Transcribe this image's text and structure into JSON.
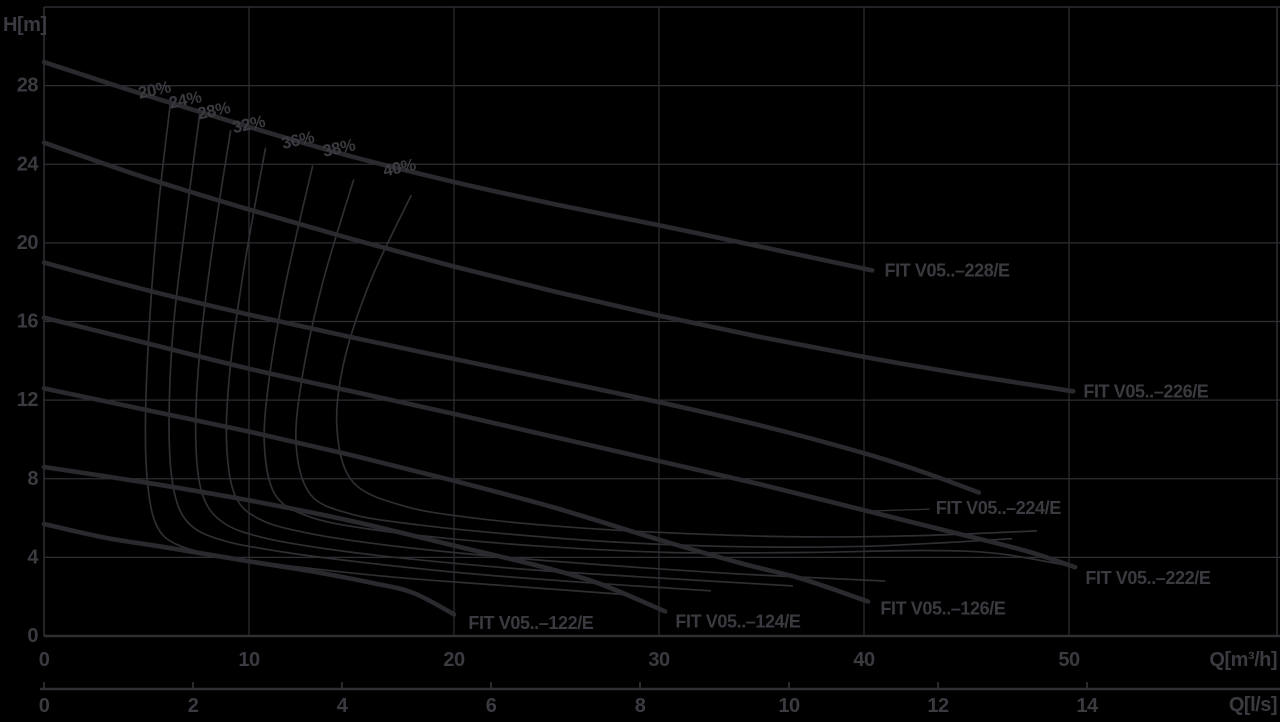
{
  "page": {
    "background": "#000000",
    "ink_grid": "#2e2e33",
    "ink_curve": "#29292e",
    "ink_thin": "#2e2e33",
    "ink_text": "#3a3a40"
  },
  "chart_data": {
    "type": "line",
    "y_axis": {
      "label": "H[m]",
      "ticks": [
        0,
        4,
        8,
        12,
        16,
        20,
        24,
        28
      ],
      "range": [
        0,
        32
      ],
      "grid": true
    },
    "x_axis_primary": {
      "label": "Q[m³/h]",
      "ticks": [
        0,
        10,
        20,
        30,
        40,
        50
      ],
      "range": [
        0,
        60.2
      ],
      "grid": true
    },
    "x_axis_secondary": {
      "label": "Q[l/s]",
      "ticks": [
        0,
        2,
        4,
        6,
        8,
        10,
        12,
        14
      ],
      "range": [
        0,
        16.6
      ]
    },
    "pump_curves": [
      {
        "name": "FIT V05..–228/E",
        "label_at": [
          41.0,
          18.6
        ],
        "points": [
          [
            0,
            29.2
          ],
          [
            5,
            27.5
          ],
          [
            10,
            25.9
          ],
          [
            15,
            24.4
          ],
          [
            20,
            23.1
          ],
          [
            25,
            21.95
          ],
          [
            30,
            20.9
          ],
          [
            35,
            19.8
          ],
          [
            40.4,
            18.6
          ]
        ]
      },
      {
        "name": "FIT V05..–226/E",
        "label_at": [
          50.7,
          12.45
        ],
        "points": [
          [
            0,
            25.1
          ],
          [
            5,
            23.3
          ],
          [
            10,
            21.7
          ],
          [
            15,
            20.2
          ],
          [
            20,
            18.8
          ],
          [
            25,
            17.5
          ],
          [
            30,
            16.3
          ],
          [
            35,
            15.2
          ],
          [
            40,
            14.2
          ],
          [
            45,
            13.3
          ],
          [
            50.2,
            12.45
          ]
        ]
      },
      {
        "name": "FIT V05..–224/E",
        "label_at": [
          43.5,
          6.5
        ],
        "leader": [
          [
            40.0,
            6.35
          ],
          [
            43.2,
            6.45
          ]
        ],
        "points": [
          [
            0,
            19.0
          ],
          [
            5,
            17.6
          ],
          [
            10,
            16.35
          ],
          [
            15,
            15.2
          ],
          [
            20,
            14.1
          ],
          [
            25,
            13.0
          ],
          [
            30,
            11.9
          ],
          [
            35,
            10.7
          ],
          [
            40,
            9.3
          ],
          [
            43,
            8.3
          ],
          [
            45.6,
            7.3
          ]
        ]
      },
      {
        "name": "FIT V05..–222/E",
        "label_at": [
          50.8,
          2.95
        ],
        "points": [
          [
            0,
            16.2
          ],
          [
            5,
            14.9
          ],
          [
            10,
            13.6
          ],
          [
            15,
            12.45
          ],
          [
            20,
            11.3
          ],
          [
            25,
            10.1
          ],
          [
            30,
            8.9
          ],
          [
            35,
            7.7
          ],
          [
            40,
            6.4
          ],
          [
            45,
            5.1
          ],
          [
            48,
            4.3
          ],
          [
            50.3,
            3.5
          ]
        ]
      },
      {
        "name": "FIT V05..–126/E",
        "label_at": [
          40.8,
          1.4
        ],
        "points": [
          [
            0,
            12.6
          ],
          [
            5,
            11.5
          ],
          [
            10,
            10.4
          ],
          [
            15,
            9.2
          ],
          [
            20,
            7.9
          ],
          [
            25,
            6.5
          ],
          [
            30,
            4.9
          ],
          [
            34,
            3.7
          ],
          [
            37,
            2.9
          ],
          [
            40.2,
            1.75
          ]
        ]
      },
      {
        "name": "FIT V05..–124/E",
        "label_at": [
          30.8,
          0.75
        ],
        "points": [
          [
            0,
            8.6
          ],
          [
            5,
            7.8
          ],
          [
            10,
            6.9
          ],
          [
            15,
            5.85
          ],
          [
            20,
            4.6
          ],
          [
            24,
            3.6
          ],
          [
            27,
            2.7
          ],
          [
            30.3,
            1.25
          ]
        ]
      },
      {
        "name": "FIT V05..–122/E",
        "label_at": [
          20.7,
          0.65
        ],
        "points": [
          [
            0,
            5.7
          ],
          [
            3,
            5.0
          ],
          [
            6,
            4.5
          ],
          [
            10,
            3.8
          ],
          [
            13,
            3.3
          ],
          [
            16,
            2.7
          ],
          [
            18,
            2.2
          ],
          [
            20,
            1.1
          ]
        ]
      }
    ],
    "efficiency_curves": [
      {
        "label": "20%",
        "label_at": [
          4.6,
          27.6
        ],
        "points": [
          [
            6.2,
            27.4
          ],
          [
            5.6,
            22
          ],
          [
            5.15,
            16
          ],
          [
            4.95,
            11
          ],
          [
            5.05,
            7.8
          ],
          [
            5.5,
            5.6
          ],
          [
            6.6,
            4.6
          ],
          [
            9,
            4.0
          ],
          [
            12.5,
            3.5
          ],
          [
            17,
            3.0
          ],
          [
            22,
            2.6
          ],
          [
            28.5,
            2.1
          ]
        ]
      },
      {
        "label": "24%",
        "label_at": [
          6.1,
          27.1
        ],
        "points": [
          [
            7.6,
            26.6
          ],
          [
            6.9,
            21
          ],
          [
            6.3,
            15.6
          ],
          [
            6.1,
            10.8
          ],
          [
            6.3,
            7.6
          ],
          [
            7.0,
            5.8
          ],
          [
            8.6,
            4.9
          ],
          [
            11.5,
            4.3
          ],
          [
            15.5,
            3.75
          ],
          [
            20.5,
            3.2
          ],
          [
            26,
            2.75
          ],
          [
            32.5,
            2.3
          ]
        ]
      },
      {
        "label": "28%",
        "label_at": [
          7.5,
          26.55
        ],
        "points": [
          [
            9.1,
            25.7
          ],
          [
            8.25,
            20
          ],
          [
            7.6,
            14.5
          ],
          [
            7.4,
            10.2
          ],
          [
            7.7,
            7.3
          ],
          [
            8.7,
            5.8
          ],
          [
            10.7,
            5.0
          ],
          [
            14,
            4.4
          ],
          [
            18.5,
            3.85
          ],
          [
            24,
            3.35
          ],
          [
            30,
            2.95
          ],
          [
            36.5,
            2.55
          ]
        ]
      },
      {
        "label": "32%",
        "label_at": [
          9.2,
          25.85
        ],
        "points": [
          [
            10.8,
            24.8
          ],
          [
            9.8,
            19
          ],
          [
            9.1,
            13.8
          ],
          [
            8.9,
            10.0
          ],
          [
            9.3,
            7.2
          ],
          [
            10.5,
            5.95
          ],
          [
            12.8,
            5.25
          ],
          [
            16.5,
            4.65
          ],
          [
            21.5,
            4.1
          ],
          [
            27.5,
            3.6
          ],
          [
            34,
            3.15
          ],
          [
            41,
            2.8
          ]
        ]
      },
      {
        "label": "36%",
        "label_at": [
          11.6,
          25.05
        ],
        "points": [
          [
            13.1,
            23.9
          ],
          [
            11.8,
            18
          ],
          [
            11.0,
            13.2
          ],
          [
            10.75,
            9.7
          ],
          [
            11.3,
            7.15
          ],
          [
            13.0,
            6.05
          ],
          [
            15.8,
            5.45
          ],
          [
            19.8,
            4.95
          ],
          [
            24.5,
            4.55
          ],
          [
            30.5,
            4.25
          ],
          [
            37,
            4.25
          ],
          [
            43,
            4.35
          ],
          [
            46.5,
            4.2
          ],
          [
            50.1,
            3.55
          ]
        ]
      },
      {
        "label": "38%",
        "label_at": [
          13.6,
          24.65
        ],
        "points": [
          [
            15.1,
            23.2
          ],
          [
            13.6,
            18
          ],
          [
            12.6,
            13.2
          ],
          [
            12.3,
            9.7
          ],
          [
            13.0,
            7.2
          ],
          [
            15.0,
            6.2
          ],
          [
            18.3,
            5.65
          ],
          [
            22.5,
            5.2
          ],
          [
            27.5,
            4.8
          ],
          [
            33.5,
            4.55
          ],
          [
            39.5,
            4.55
          ],
          [
            44,
            4.75
          ],
          [
            47.2,
            4.95
          ]
        ]
      },
      {
        "label": "40%",
        "label_at": [
          16.55,
          23.65
        ],
        "points": [
          [
            17.9,
            22.4
          ],
          [
            15.9,
            18
          ],
          [
            14.6,
            13.8
          ],
          [
            14.3,
            10.4
          ],
          [
            15.1,
            7.8
          ],
          [
            17.6,
            6.6
          ],
          [
            21,
            6.0
          ],
          [
            25.5,
            5.55
          ],
          [
            30.5,
            5.25
          ],
          [
            36.5,
            5.05
          ],
          [
            42.5,
            5.1
          ],
          [
            48.4,
            5.35
          ]
        ]
      }
    ]
  }
}
